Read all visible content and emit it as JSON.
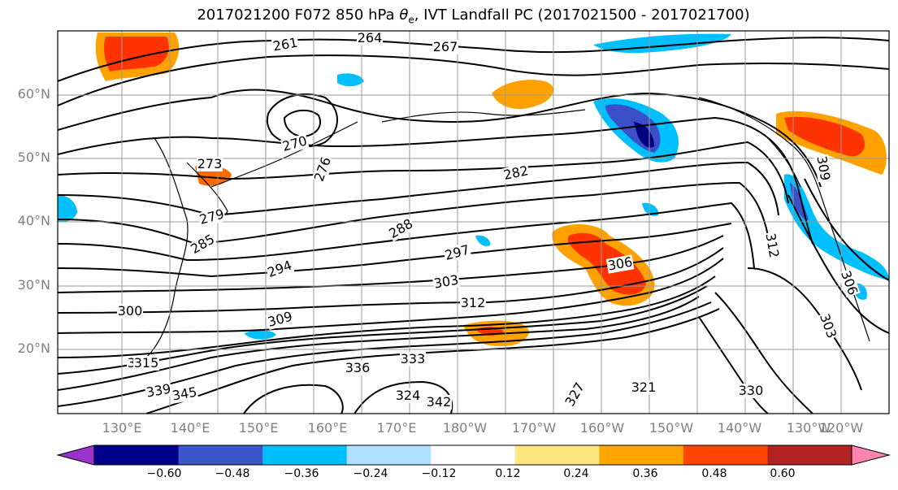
{
  "title": "2017021200 F072 850 hPa θe, IVT Landfall PC (2017021500 - 2017021700)",
  "title_parts": {
    "prefix": "2017021200 F072 850 hPa ",
    "theta": "θ",
    "sub": "e",
    "suffix": ", IVT Landfall PC (2017021500 - 2017021700)"
  },
  "map": {
    "lat_labels": [
      "60°N",
      "50°N",
      "40°N",
      "30°N",
      "20°N"
    ],
    "lon_labels": [
      "130°E",
      "140°E",
      "150°E",
      "160°E",
      "170°E",
      "180°W",
      "170°W",
      "160°W",
      "150°W",
      "140°W",
      "130°W",
      "120°W"
    ],
    "contour_labels": [
      "261",
      "264",
      "267",
      "270",
      "273",
      "276",
      "279",
      "282",
      "285",
      "288",
      "294",
      "297",
      "300",
      "303",
      "306",
      "309",
      "312",
      "315",
      "321",
      "324",
      "327",
      "330",
      "333",
      "336",
      "339",
      "342",
      "345",
      "303",
      "306",
      "309",
      "312",
      "315"
    ],
    "colors": {
      "land_contour": "#000000",
      "grid": "#9a9a9a",
      "positive_strong": "#ff3300",
      "positive_mid": "#ffa200",
      "positive_weak": "#ffe680",
      "negative_strong": "#000080",
      "negative_mid": "#3a4fc8",
      "negative_weak": "#00bfff"
    }
  },
  "colorbar": {
    "ticks": [
      "−0.60",
      "−0.48",
      "−0.36",
      "−0.24",
      "−0.12",
      "0.12",
      "0.24",
      "0.36",
      "0.48",
      "0.60"
    ],
    "colors": [
      "#9932cc",
      "#00008b",
      "#3a56c8",
      "#00bfff",
      "#b0e2ff",
      "#ffffff",
      "#ffe680",
      "#ffa500",
      "#ff4500",
      "#b22222",
      "#ff85b0"
    ]
  }
}
